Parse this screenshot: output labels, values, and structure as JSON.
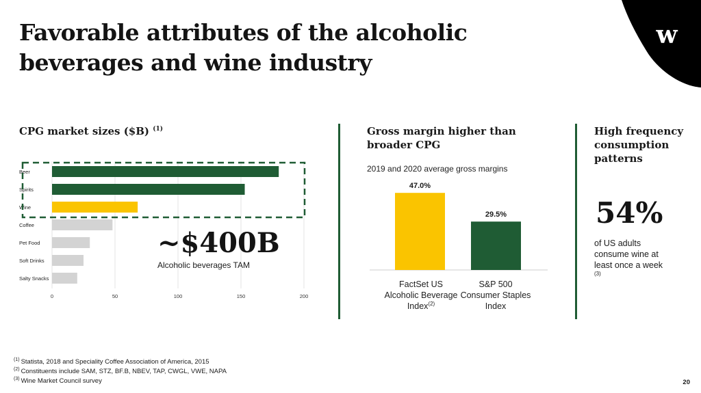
{
  "title": "Favorable attributes of the alcoholic beverages and wine industry",
  "brand": {
    "logo_text": "w",
    "shape_color": "#000000"
  },
  "colors": {
    "accent_green": "#1f5c34",
    "wine_yellow": "#fac400",
    "neutral_gray": "#d3d3d3"
  },
  "section1": {
    "title": "CPG market sizes ($B)",
    "footnote_marker": "(1)"
  },
  "section2": {
    "title": "Gross margin higher than broader CPG",
    "subtitle": "2019 and 2020 average gross margins",
    "categories": [
      {
        "label": "FactSet US Alcoholic Beverage Index",
        "footnote_marker": "(2)"
      },
      {
        "label": "S&P 500 Consumer Staples Index",
        "footnote_marker": ""
      }
    ]
  },
  "section3": {
    "title": "High frequency consumption patterns",
    "value": "54%",
    "text": "of US adults consume wine at least once a week",
    "footnote_marker": "(3)"
  },
  "tam": {
    "value": "~$400B",
    "label": "Alcoholic beverages TAM"
  },
  "chart_data": [
    {
      "type": "bar",
      "orientation": "horizontal",
      "title": "CPG market sizes ($B)",
      "categories": [
        "Beer",
        "Spirits",
        "Wine",
        "Coffee",
        "Pet Food",
        "Soft Drinks",
        "Salty Snacks"
      ],
      "values": [
        180,
        153,
        68,
        48,
        30,
        25,
        20
      ],
      "colors": [
        "#1f5c34",
        "#1f5c34",
        "#fac400",
        "#d3d3d3",
        "#d3d3d3",
        "#d3d3d3",
        "#d3d3d3"
      ],
      "xticks": [
        0,
        50,
        100,
        150,
        200
      ],
      "xlim": [
        0,
        200
      ],
      "grid": true,
      "highlight": "dashed box around Beer, Spirits, Wine"
    },
    {
      "type": "bar",
      "title": "2019 and 2020 average gross margins",
      "categories": [
        "FactSet US Alcoholic Beverage Index",
        "S&P 500 Consumer Staples Index"
      ],
      "values": [
        47.0,
        29.5
      ],
      "data_labels": [
        "47.0%",
        "29.5%"
      ],
      "colors": [
        "#fac400",
        "#1f5c34"
      ],
      "ylim": [
        0,
        50
      ]
    }
  ],
  "footnotes": [
    {
      "marker": "(1)",
      "text": "Statista, 2018 and Speciality Coffee Association of America, 2015"
    },
    {
      "marker": "(2)",
      "text": "Constituents include SAM, STZ, BF.B, NBEV, TAP, CWGL, VWE, NAPA"
    },
    {
      "marker": "(3)",
      "text": "Wine Market Council survey"
    }
  ],
  "page_number": "20"
}
